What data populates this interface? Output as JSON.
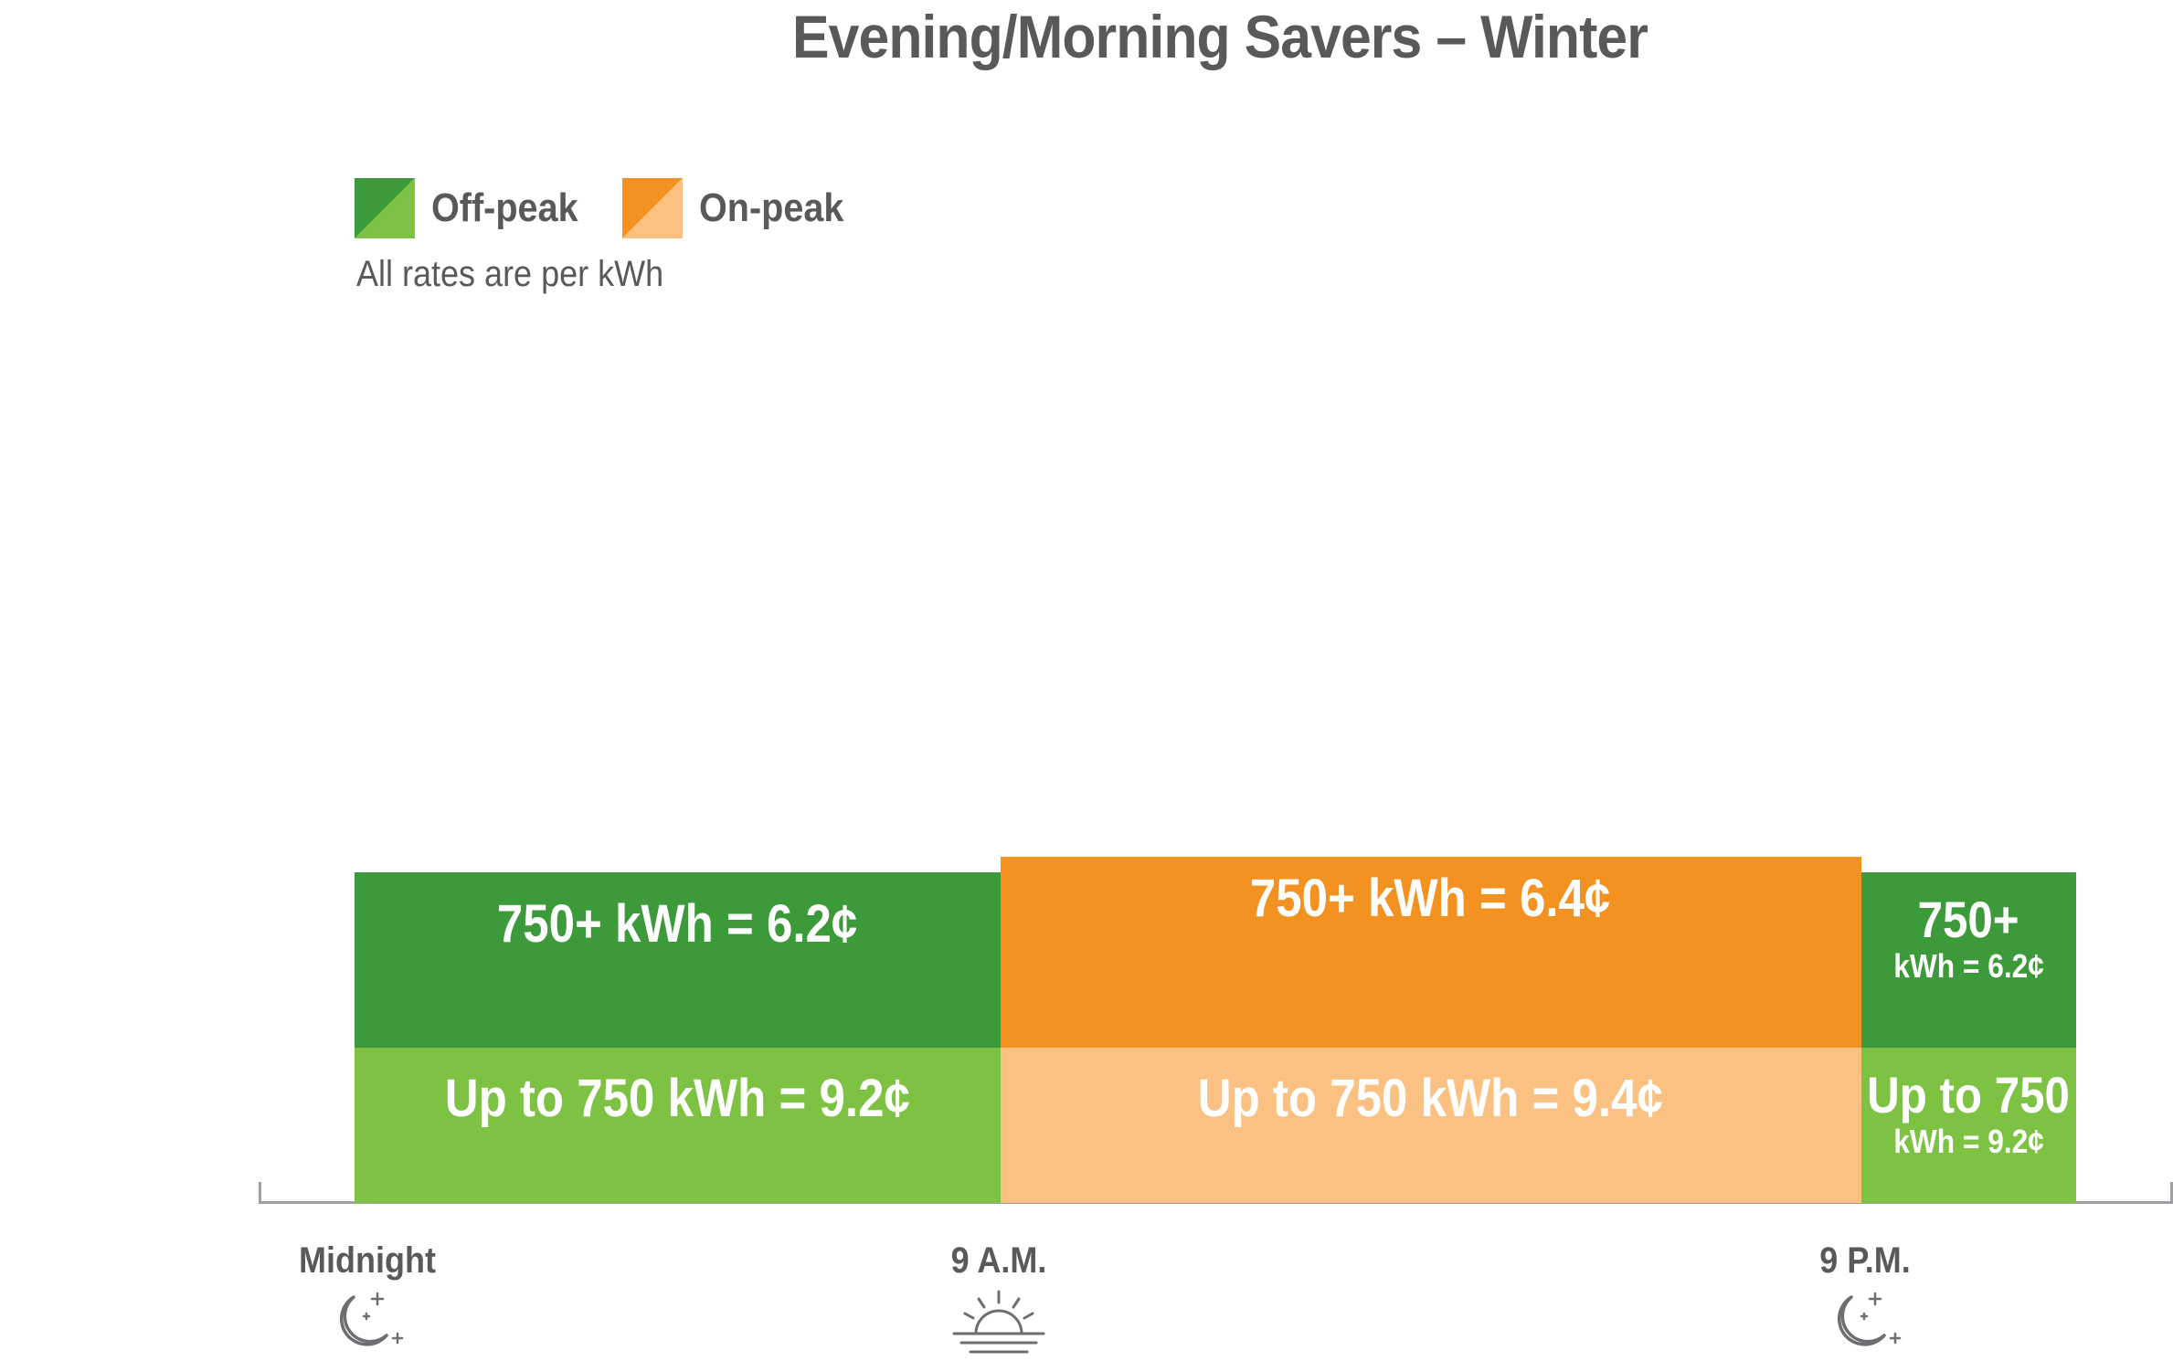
{
  "chart_data": {
    "type": "bar",
    "title": "Evening/Morning Savers – Winter",
    "legend": [
      {
        "name": "Off-peak",
        "color_dark": "#3d9a3a",
        "color_light": "#7dc242"
      },
      {
        "name": "On-peak",
        "color_dark": "#f39220",
        "color_light": "#fac183"
      }
    ],
    "note": "All rates are per kWh",
    "x_axis": {
      "range_hours": [
        0,
        24
      ]
    },
    "time_labels": [
      {
        "label": "Midnight",
        "hour": 0,
        "icon": "moon-stars-icon"
      },
      {
        "label": "9 A.M.",
        "hour": 9,
        "icon": "sunrise-icon"
      },
      {
        "label": "9 P.M.",
        "hour": 21,
        "icon": "moon-stars-icon"
      }
    ],
    "segments": [
      {
        "period": "Off-peak",
        "start_hour": 0,
        "end_hour": 9,
        "upper": {
          "lines": [
            "750+ kWh = 6.2¢"
          ],
          "rate_cents": 6.2
        },
        "lower": {
          "lines": [
            "Up to 750 kWh = 9.2¢"
          ],
          "rate_cents": 9.2
        }
      },
      {
        "period": "On-peak",
        "start_hour": 9,
        "end_hour": 21,
        "upper": {
          "lines": [
            "750+ kWh = 6.4¢"
          ],
          "rate_cents": 6.4
        },
        "lower": {
          "lines": [
            "Up to 750 kWh = 9.4¢"
          ],
          "rate_cents": 9.4
        }
      },
      {
        "period": "Off-peak",
        "start_hour": 21,
        "end_hour": 24,
        "upper": {
          "lines": [
            "750+",
            "kWh = 6.2¢"
          ],
          "rate_cents": 6.2
        },
        "lower": {
          "lines": [
            "Up to 750",
            "kWh = 9.2¢"
          ],
          "rate_cents": 9.2
        }
      }
    ]
  }
}
